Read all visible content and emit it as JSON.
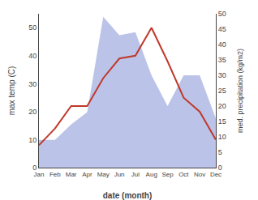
{
  "chart_data": {
    "type": "line",
    "categories": [
      "Jan",
      "Feb",
      "Mar",
      "Apr",
      "May",
      "Jun",
      "Jul",
      "Aug",
      "Sep",
      "Oct",
      "Nov",
      "Dec"
    ],
    "series": [
      {
        "type": "area",
        "color": "#bbc3e8",
        "axis": "y2",
        "values": [
          9,
          9,
          14,
          18,
          49,
          43,
          44,
          30,
          20,
          30,
          30,
          16
        ]
      },
      {
        "type": "line",
        "color": "#c0392b",
        "values": [
          8,
          14,
          22,
          22,
          32,
          39,
          40,
          50,
          38,
          25,
          20,
          10
        ]
      }
    ],
    "xlabel": "date (month)",
    "ylabel": "max temp (C)",
    "y2label": "med. precipitation (kg/m2)",
    "ylim": [
      0,
      55
    ],
    "yticks": [
      0,
      10,
      20,
      30,
      40,
      50
    ],
    "y2lim": [
      0,
      50
    ],
    "y2ticks": [
      0,
      5,
      10,
      15,
      20,
      25,
      30,
      35,
      40,
      45,
      50
    ],
    "grid": false
  }
}
